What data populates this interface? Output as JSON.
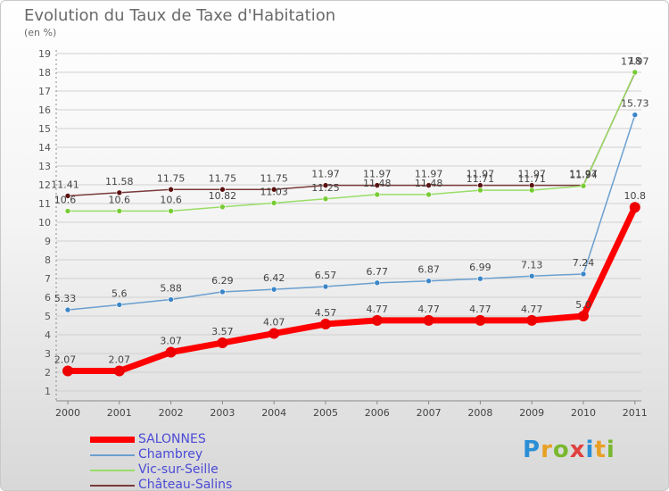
{
  "title": "Evolution du Taux de Taxe d'Habitation",
  "unit": "(en %)",
  "logo": {
    "letters": [
      "P",
      "r",
      "o",
      "x",
      "i",
      "t",
      "i"
    ],
    "colors": [
      "#2b8fd6",
      "#e8a024",
      "#7ab82f",
      "#e04040",
      "#2b8fd6",
      "#e8a024",
      "#7ab82f"
    ]
  },
  "chart_data": {
    "type": "line",
    "x": [
      "2000",
      "2001",
      "2002",
      "2003",
      "2004",
      "2005",
      "2006",
      "2007",
      "2008",
      "2009",
      "2010",
      "2011"
    ],
    "ylim": [
      1,
      19
    ],
    "y_ticks": [
      1,
      2,
      3,
      4,
      5,
      6,
      7,
      8,
      9,
      10,
      11,
      12,
      13,
      14,
      15,
      16,
      17,
      18,
      19
    ],
    "grid": true,
    "legend_position": "bottom-left",
    "series": [
      {
        "name": "Château-Salins",
        "color": "#7a3a3a",
        "marker": "#5a1010",
        "width": 1.5,
        "values": [
          11.41,
          11.58,
          11.75,
          11.75,
          11.75,
          11.97,
          11.97,
          11.97,
          11.97,
          11.97,
          11.97,
          17.97
        ],
        "labels": [
          "11.41",
          "11.58",
          "11.75",
          "11.75",
          "11.75",
          "11.97",
          "11.97",
          "11.97",
          "11.97",
          "11.97",
          "11.97",
          "17.97"
        ]
      },
      {
        "name": "Vic-sur-Seille",
        "color": "#99dd66",
        "marker": "#77cc33",
        "width": 1.5,
        "values": [
          10.6,
          10.6,
          10.6,
          10.82,
          11.03,
          11.25,
          11.48,
          11.48,
          11.71,
          11.71,
          11.94,
          18.0
        ],
        "labels": [
          "10.6",
          "10.6",
          "10.6",
          "10.82",
          "11.03",
          "11.25",
          "11.48",
          "11.48",
          "11.71",
          "11.71",
          "11.94",
          "18"
        ]
      },
      {
        "name": "Chambrey",
        "color": "#6a9fcf",
        "marker": "#3a86c8",
        "width": 1.5,
        "values": [
          5.33,
          5.6,
          5.88,
          6.29,
          6.42,
          6.57,
          6.77,
          6.87,
          6.99,
          7.13,
          7.24,
          15.73
        ],
        "labels": [
          "5.33",
          "5.6",
          "5.88",
          "6.29",
          "6.42",
          "6.57",
          "6.77",
          "6.87",
          "6.99",
          "7.13",
          "7.24",
          "15.73"
        ]
      },
      {
        "name": "SALONNES",
        "color": "#ff0000",
        "marker": "#ee0000",
        "width": 7,
        "values": [
          2.07,
          2.07,
          3.07,
          3.57,
          4.07,
          4.57,
          4.77,
          4.77,
          4.77,
          4.77,
          5.0,
          10.8
        ],
        "labels": [
          "2.07",
          "2.07",
          "3.07",
          "3.57",
          "4.07",
          "4.57",
          "4.77",
          "4.77",
          "4.77",
          "4.77",
          "5.0",
          "10.8"
        ]
      }
    ],
    "legend": [
      {
        "name": "SALONNES",
        "color": "#ff0000",
        "thick": true
      },
      {
        "name": "Chambrey",
        "color": "#6a9fcf",
        "thick": false
      },
      {
        "name": "Vic-sur-Seille",
        "color": "#99dd66",
        "thick": false
      },
      {
        "name": "Château-Salins",
        "color": "#7a3a3a",
        "thick": false
      }
    ]
  }
}
